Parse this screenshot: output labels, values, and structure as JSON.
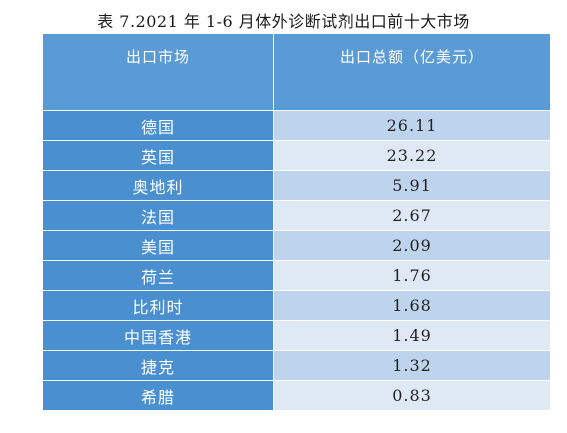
{
  "title": "表 7.2021 年 1-6 月体外诊断试剂出口前十大市场",
  "table": {
    "headers": [
      "出口市场",
      "出口总额（亿美元）"
    ],
    "rows": [
      {
        "market": "德国",
        "value": "26.11"
      },
      {
        "market": "英国",
        "value": "23.22"
      },
      {
        "market": "奥地利",
        "value": "5.91"
      },
      {
        "market": "法国",
        "value": "2.67"
      },
      {
        "market": "美国",
        "value": "2.09"
      },
      {
        "market": "荷兰",
        "value": "1.76"
      },
      {
        "market": "比利时",
        "value": "1.68"
      },
      {
        "market": "中国香港",
        "value": "1.49"
      },
      {
        "market": "捷克",
        "value": "1.32"
      },
      {
        "market": "希腊",
        "value": "0.83"
      }
    ]
  },
  "colors": {
    "header_bg": "#5b9bd5",
    "name_cell_bg": "#4a8fd0",
    "value_cell_odd_bg": "#bdd4ec",
    "value_cell_even_bg": "#dfe9f5"
  }
}
